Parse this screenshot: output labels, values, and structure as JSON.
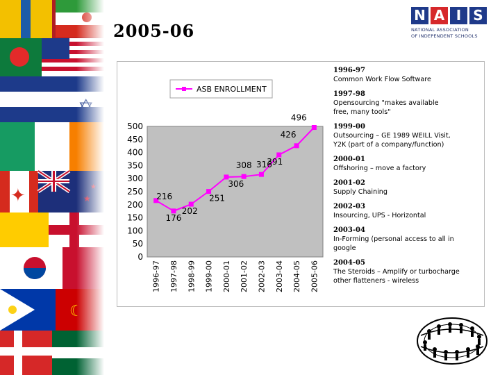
{
  "slide": {
    "title": "2005-06"
  },
  "logo": {
    "letters": [
      "N",
      "A",
      "I",
      "S"
    ],
    "line1": "NATIONAL ASSOCIATION",
    "line2": "OF INDEPENDENT SCHOOLS"
  },
  "colors": {
    "series": "#ff00ff",
    "plot_bg": "#c0c0c0",
    "logo_blue": "#1f3a8a",
    "logo_red": "#d6282b"
  },
  "chart_data": {
    "type": "line",
    "categories": [
      "1996-97",
      "1997-98",
      "1998-99",
      "1999-00",
      "2000-01",
      "2001-02",
      "2002-03",
      "2003-04",
      "2004-05",
      "2005-06"
    ],
    "series": [
      {
        "name": "ASB ENROLLMENT",
        "values": [
          216,
          176,
          202,
          251,
          306,
          308,
          316,
          391,
          426,
          496
        ]
      }
    ],
    "data_labels": [
      "216",
      "176",
      "202",
      "251",
      "306",
      "308",
      "316",
      "391",
      "426",
      "496"
    ],
    "ylim": [
      0,
      500
    ],
    "yticks": [
      "0",
      "50",
      "100",
      "150",
      "200",
      "250",
      "300",
      "350",
      "400",
      "450",
      "500"
    ],
    "grid": false,
    "legend": "top-left",
    "title": "",
    "xlabel": "",
    "ylabel": ""
  },
  "timeline": [
    {
      "year": "1996-97",
      "desc": [
        "Common Work Flow Software"
      ]
    },
    {
      "year": "1997-98",
      "desc": [
        "Opensourcing \"makes available",
        "free, many tools\""
      ]
    },
    {
      "year": "1999-00",
      "desc": [
        "Outsourcing – GE 1989 WEILL Visit,",
        "Y2K (part of a company/function)"
      ]
    },
    {
      "year": "2000-01",
      "desc": [
        "Offshoring – move a factory"
      ]
    },
    {
      "year": "2001-02",
      "desc": [
        "Supply Chaining"
      ]
    },
    {
      "year": "2002-03",
      "desc": [
        "Insourcing, UPS - Horizontal"
      ]
    },
    {
      "year": "2003-04",
      "desc": [
        "In-Forming (personal access to all in",
        "google"
      ]
    },
    {
      "year": "2004-05",
      "desc": [
        "The Steroids – Amplify or turbocharge",
        "other flatteners - wireless"
      ]
    }
  ]
}
